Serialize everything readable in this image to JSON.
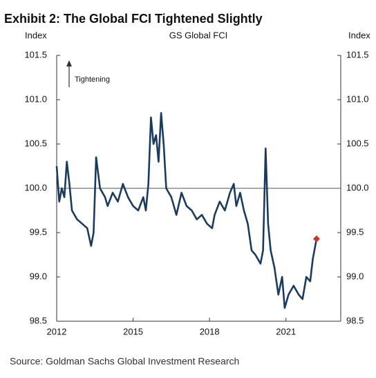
{
  "chart_data": {
    "type": "line",
    "title": "Exhibit 2: The Global FCI Tightened Slightly",
    "subtitle": "GS Global FCI",
    "y_label": "Index",
    "y2_label": "Index",
    "annotation": "Tightening",
    "source": "Source: Goldman Sachs Global Investment Research",
    "xlim": [
      2012,
      2023.15
    ],
    "xticks": [
      2012,
      2015,
      2018,
      2021
    ],
    "ylim": [
      98.5,
      101.5
    ],
    "yticks": [
      98.5,
      {
        "value": 99,
        "label": "99.0"
      },
      99.5,
      {
        "value": 100,
        "label": "100.0"
      },
      100.5,
      {
        "value": 101,
        "label": "101.0"
      },
      101.5
    ],
    "y2lim": [
      98.5,
      101.5
    ],
    "y2ticks": [
      98.5,
      {
        "value": 99,
        "label": "99.0"
      },
      99.5,
      {
        "value": 100,
        "label": "100.0"
      },
      100.5,
      {
        "value": 101,
        "label": "101.0"
      },
      101.5
    ],
    "reference_line": 100,
    "last_marker_color": "#c0392b",
    "x": [
      2012.0,
      2012.1,
      2012.2,
      2012.3,
      2012.4,
      2012.5,
      2012.6,
      2012.8,
      2013.0,
      2013.2,
      2013.35,
      2013.45,
      2013.55,
      2013.7,
      2013.9,
      2014.0,
      2014.2,
      2014.4,
      2014.6,
      2014.8,
      2015.0,
      2015.2,
      2015.4,
      2015.5,
      2015.6,
      2015.7,
      2015.8,
      2015.9,
      2016.0,
      2016.1,
      2016.2,
      2016.3,
      2016.5,
      2016.7,
      2016.9,
      2017.1,
      2017.3,
      2017.5,
      2017.7,
      2017.9,
      2018.1,
      2018.2,
      2018.4,
      2018.6,
      2018.8,
      2018.95,
      2019.05,
      2019.2,
      2019.35,
      2019.5,
      2019.65,
      2019.8,
      2020.0,
      2020.1,
      2020.2,
      2020.3,
      2020.4,
      2020.55,
      2020.7,
      2020.85,
      2020.95,
      2021.1,
      2021.3,
      2021.5,
      2021.65,
      2021.8,
      2021.95,
      2022.05,
      2022.2
    ],
    "series": [
      {
        "name": "GS Global FCI",
        "color": "#1a3a5e",
        "values": [
          100.25,
          99.85,
          100.0,
          99.9,
          100.3,
          100.05,
          99.75,
          99.65,
          99.6,
          99.55,
          99.35,
          99.5,
          100.35,
          100.0,
          99.9,
          99.8,
          99.95,
          99.85,
          100.05,
          99.9,
          99.8,
          99.75,
          99.9,
          99.75,
          100.05,
          100.8,
          100.5,
          100.6,
          100.3,
          100.85,
          100.5,
          100.0,
          99.9,
          99.7,
          99.95,
          99.8,
          99.75,
          99.65,
          99.7,
          99.6,
          99.55,
          99.7,
          99.85,
          99.75,
          99.95,
          100.05,
          99.8,
          99.95,
          99.75,
          99.6,
          99.3,
          99.25,
          99.15,
          99.3,
          100.45,
          99.6,
          99.3,
          99.1,
          98.8,
          99.0,
          98.65,
          98.8,
          98.9,
          98.8,
          98.75,
          99.0,
          98.95,
          99.2,
          99.43
        ]
      }
    ]
  }
}
